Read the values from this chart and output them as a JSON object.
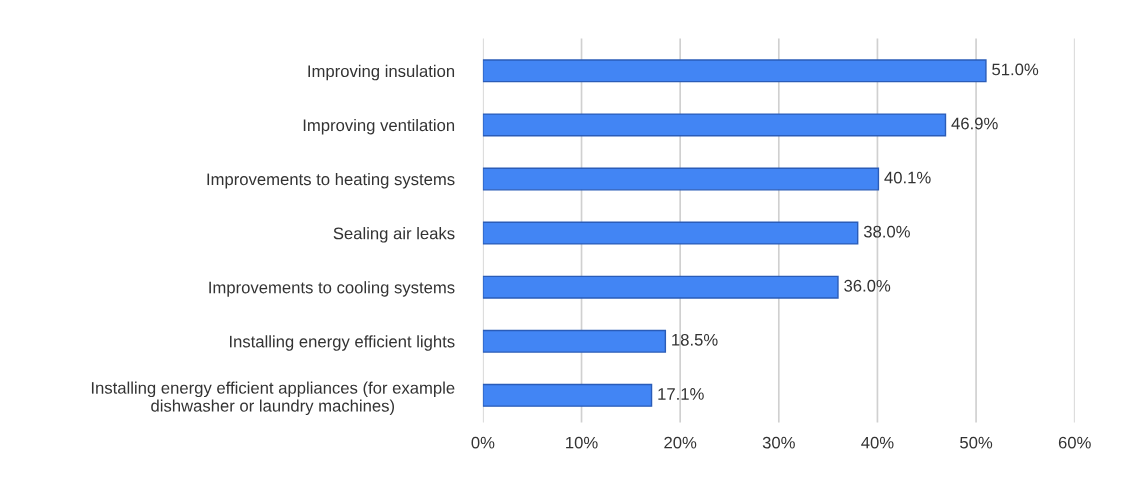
{
  "chart_data": {
    "type": "bar",
    "orientation": "horizontal",
    "categories": [
      "Improving insulation",
      "Improving ventilation",
      "Improvements to heating systems",
      "Sealing air leaks",
      "Improvements to cooling systems",
      "Installing energy efficient lights",
      "Installing energy efficient appliances (for example\ndishwasher or laundry machines)"
    ],
    "values": [
      51.0,
      46.9,
      40.1,
      38.0,
      36.0,
      18.5,
      17.1
    ],
    "value_labels": [
      "51.0%",
      "46.9%",
      "40.1%",
      "38.0%",
      "36.0%",
      "18.5%",
      "17.1%"
    ],
    "color": "#4285f4",
    "xlim": [
      0,
      60
    ],
    "xticks": [
      {
        "value": 0,
        "label": "0%"
      },
      {
        "value": 10,
        "label": "10%"
      },
      {
        "value": 20,
        "label": "20%"
      },
      {
        "value": 30,
        "label": "30%"
      },
      {
        "value": 40,
        "label": "40%"
      },
      {
        "value": 50,
        "label": "50%"
      },
      {
        "value": 60,
        "label": "60%"
      }
    ],
    "grid": "x"
  }
}
